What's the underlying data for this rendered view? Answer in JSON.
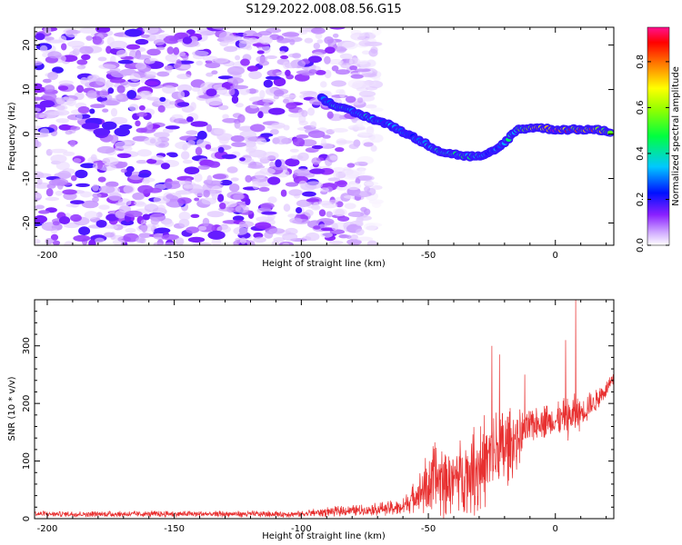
{
  "title": "S129.2022.008.08.56.G15",
  "chart_data": [
    {
      "type": "heatmap",
      "xlabel": "Height of straight line (km)",
      "ylabel": "Frequency (Hz)",
      "xlim": [
        -205,
        23
      ],
      "ylim": [
        -25,
        24
      ],
      "xticks": [
        -200,
        -150,
        -100,
        -50,
        0
      ],
      "yticks": [
        -20,
        -10,
        0,
        10,
        20
      ],
      "colorbar": {
        "label": "Normalized spectral amplitude",
        "range": [
          0,
          0.95
        ],
        "ticks": [
          "0.0",
          "0.2",
          "0.4",
          "0.6",
          "0.8"
        ],
        "tick_values": [
          0,
          0.2,
          0.4,
          0.6,
          0.8
        ],
        "colormap": [
          "#ffffff",
          "#7f00ff",
          "#0000ff",
          "#00c8ff",
          "#00ff00",
          "#ffff00",
          "#ff8000",
          "#ff0000",
          "#ff0080"
        ]
      },
      "noise_region": {
        "x_range": [
          -205,
          -70
        ],
        "freq_range": [
          -25,
          24
        ],
        "typical_amplitude": 0.1
      },
      "signal_track": [
        {
          "x": -92,
          "freq": 8,
          "amplitude": 0.3
        },
        {
          "x": -85,
          "freq": 6,
          "amplitude": 0.35
        },
        {
          "x": -75,
          "freq": 4,
          "amplitude": 0.35
        },
        {
          "x": -65,
          "freq": 2,
          "amplitude": 0.3
        },
        {
          "x": -55,
          "freq": -1,
          "amplitude": 0.3
        },
        {
          "x": -45,
          "freq": -4,
          "amplitude": 0.35
        },
        {
          "x": -35,
          "freq": -5,
          "amplitude": 0.4
        },
        {
          "x": -28,
          "freq": -5,
          "amplitude": 0.3
        },
        {
          "x": -22,
          "freq": -3,
          "amplitude": 0.3
        },
        {
          "x": -15,
          "freq": 1,
          "amplitude": 0.45
        },
        {
          "x": -8,
          "freq": 1.5,
          "amplitude": 0.6
        },
        {
          "x": 0,
          "freq": 1,
          "amplitude": 0.85
        },
        {
          "x": 8,
          "freq": 1,
          "amplitude": 0.7
        },
        {
          "x": 15,
          "freq": 1,
          "amplitude": 0.75
        },
        {
          "x": 22,
          "freq": 0.5,
          "amplitude": 0.6
        }
      ]
    },
    {
      "type": "line",
      "xlabel": "Height of straight line (km)",
      "ylabel": "SNR (10 * v/v)",
      "xlim": [
        -205,
        23
      ],
      "ylim": [
        0,
        380
      ],
      "xticks": [
        -200,
        -150,
        -100,
        -50,
        0
      ],
      "yticks": [
        0,
        100,
        200,
        300
      ],
      "color": "#e83030",
      "envelope": [
        {
          "x": -205,
          "base": 8,
          "amp": 10
        },
        {
          "x": -100,
          "base": 8,
          "amp": 12
        },
        {
          "x": -90,
          "base": 12,
          "amp": 18
        },
        {
          "x": -75,
          "base": 15,
          "amp": 20
        },
        {
          "x": -60,
          "base": 20,
          "amp": 30
        },
        {
          "x": -55,
          "base": 40,
          "amp": 60
        },
        {
          "x": -50,
          "base": 60,
          "amp": 120
        },
        {
          "x": -45,
          "base": 70,
          "amp": 150
        },
        {
          "x": -40,
          "base": 70,
          "amp": 120
        },
        {
          "x": -35,
          "base": 80,
          "amp": 140
        },
        {
          "x": -30,
          "base": 90,
          "amp": 180
        },
        {
          "x": -25,
          "base": 110,
          "amp": 170
        },
        {
          "x": -20,
          "base": 120,
          "amp": 150
        },
        {
          "x": -15,
          "base": 140,
          "amp": 110
        },
        {
          "x": -10,
          "base": 160,
          "amp": 60
        },
        {
          "x": -5,
          "base": 170,
          "amp": 60
        },
        {
          "x": 0,
          "base": 170,
          "amp": 60
        },
        {
          "x": 5,
          "base": 175,
          "amp": 80
        },
        {
          "x": 10,
          "base": 185,
          "amp": 70
        },
        {
          "x": 15,
          "base": 200,
          "amp": 40
        },
        {
          "x": 23,
          "base": 240,
          "amp": 25
        }
      ],
      "peaks": [
        {
          "x": -25,
          "y": 300
        },
        {
          "x": -22,
          "y": 285
        },
        {
          "x": -12,
          "y": 250
        },
        {
          "x": 4,
          "y": 310
        },
        {
          "x": 8,
          "y": 380
        }
      ]
    }
  ]
}
